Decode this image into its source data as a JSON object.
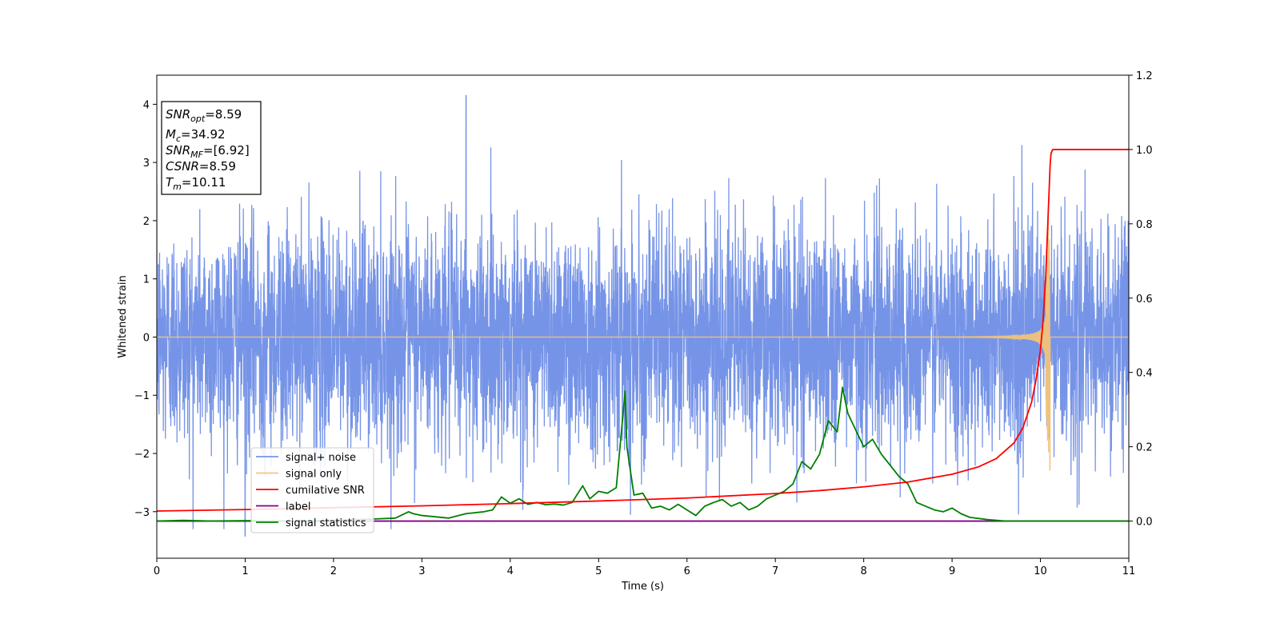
{
  "chart_data": {
    "type": "line",
    "xlabel": "Time (s)",
    "ylabel": "Whitened strain",
    "xlim": [
      0,
      11
    ],
    "ylim": [
      -3.8,
      4.5
    ],
    "y2lim": [
      -0.1,
      1.2
    ],
    "xticks": [
      "0",
      "1",
      "2",
      "3",
      "4",
      "5",
      "6",
      "7",
      "8",
      "9",
      "10",
      "11"
    ],
    "yticks": [
      "−3",
      "−2",
      "−1",
      "0",
      "1",
      "2",
      "3",
      "4"
    ],
    "yticks_values": [
      -3,
      -2,
      -1,
      0,
      1,
      2,
      3,
      4
    ],
    "y2ticks": [
      "0.0",
      "0.2",
      "0.4",
      "0.6",
      "0.8",
      "1.0",
      "1.2"
    ],
    "y2ticks_values": [
      0.0,
      0.2,
      0.4,
      0.6,
      0.8,
      1.0,
      1.2
    ],
    "grid": false,
    "legend_position": "lower-left",
    "legend": [
      "signal+ noise",
      "signal only",
      "cumilative SNR",
      "label",
      "signal statistics"
    ],
    "annotations": [
      {
        "base": "SNR",
        "sub": "opt",
        "value": "=8.59"
      },
      {
        "base": "M",
        "sub": "c",
        "value": "=34.92"
      },
      {
        "base": "SNR",
        "sub": "MF",
        "value": "=[6.92]"
      },
      {
        "base": "CSNR",
        "sub": "",
        "value": "=8.59"
      },
      {
        "base": "T",
        "sub": "m",
        "value": "=10.11"
      }
    ],
    "series": [
      {
        "name": "signal+ noise",
        "axis": "left",
        "color": "#6f8ee6",
        "description_stats": {
          "x_start": 0,
          "x_end": 11,
          "typical_peak_pos": 2.5,
          "typical_peak_neg": -2.5,
          "max": 4.15,
          "max_at": 3.5,
          "min": -3.42,
          "min_at": 1.0
        }
      },
      {
        "name": "signal only",
        "axis": "left",
        "color": "#f2c27a",
        "description_stats": {
          "x_start": 0,
          "x_end": 10.11,
          "amplitude_at_end": 2.6,
          "merger_time": 10.11
        }
      },
      {
        "name": "cumilative SNR",
        "axis": "right",
        "color": "#ff0000",
        "x": [
          0,
          1,
          2,
          3,
          4,
          5,
          6,
          7,
          7.5,
          8,
          8.5,
          9,
          9.3,
          9.5,
          9.7,
          9.8,
          9.9,
          9.95,
          10.0,
          10.03,
          10.06,
          10.08,
          10.1,
          10.11,
          10.12,
          10.14,
          11
        ],
        "values": [
          0.027,
          0.031,
          0.036,
          0.041,
          0.047,
          0.054,
          0.062,
          0.074,
          0.082,
          0.092,
          0.105,
          0.126,
          0.146,
          0.168,
          0.21,
          0.25,
          0.32,
          0.38,
          0.46,
          0.54,
          0.66,
          0.78,
          0.9,
          0.96,
          0.99,
          1.0,
          1.0
        ]
      },
      {
        "name": "label",
        "axis": "right",
        "color": "#800080",
        "x": [
          0,
          11
        ],
        "values": [
          0.0,
          0.0
        ]
      },
      {
        "name": "signal statistics",
        "axis": "right",
        "color": "#008000",
        "x": [
          0,
          0.3,
          0.6,
          1.0,
          1.5,
          2.0,
          2.5,
          2.7,
          2.85,
          2.9,
          3.0,
          3.3,
          3.5,
          3.7,
          3.8,
          3.9,
          4.0,
          4.1,
          4.2,
          4.3,
          4.4,
          4.5,
          4.6,
          4.7,
          4.82,
          4.9,
          5.0,
          5.1,
          5.2,
          5.3,
          5.32,
          5.4,
          5.5,
          5.6,
          5.7,
          5.8,
          5.9,
          6.0,
          6.1,
          6.2,
          6.3,
          6.4,
          6.5,
          6.6,
          6.7,
          6.8,
          6.9,
          7.0,
          7.1,
          7.2,
          7.3,
          7.4,
          7.5,
          7.6,
          7.7,
          7.76,
          7.82,
          7.9,
          8.0,
          8.1,
          8.2,
          8.3,
          8.4,
          8.5,
          8.6,
          8.7,
          8.8,
          8.9,
          9.0,
          9.1,
          9.2,
          9.4,
          9.6,
          10.0,
          11.0
        ],
        "values": [
          0.0,
          0.002,
          0.0,
          0.001,
          0.0,
          0.002,
          0.006,
          0.008,
          0.025,
          0.02,
          0.015,
          0.008,
          0.02,
          0.025,
          0.03,
          0.065,
          0.048,
          0.06,
          0.045,
          0.05,
          0.044,
          0.046,
          0.043,
          0.05,
          0.095,
          0.06,
          0.08,
          0.075,
          0.09,
          0.35,
          0.2,
          0.07,
          0.075,
          0.035,
          0.04,
          0.03,
          0.045,
          0.03,
          0.015,
          0.04,
          0.05,
          0.058,
          0.04,
          0.05,
          0.03,
          0.04,
          0.06,
          0.07,
          0.08,
          0.1,
          0.16,
          0.14,
          0.18,
          0.27,
          0.24,
          0.36,
          0.29,
          0.25,
          0.2,
          0.22,
          0.18,
          0.15,
          0.12,
          0.1,
          0.05,
          0.04,
          0.03,
          0.025,
          0.035,
          0.02,
          0.01,
          0.004,
          0.0,
          0.0,
          0.0
        ]
      }
    ]
  }
}
